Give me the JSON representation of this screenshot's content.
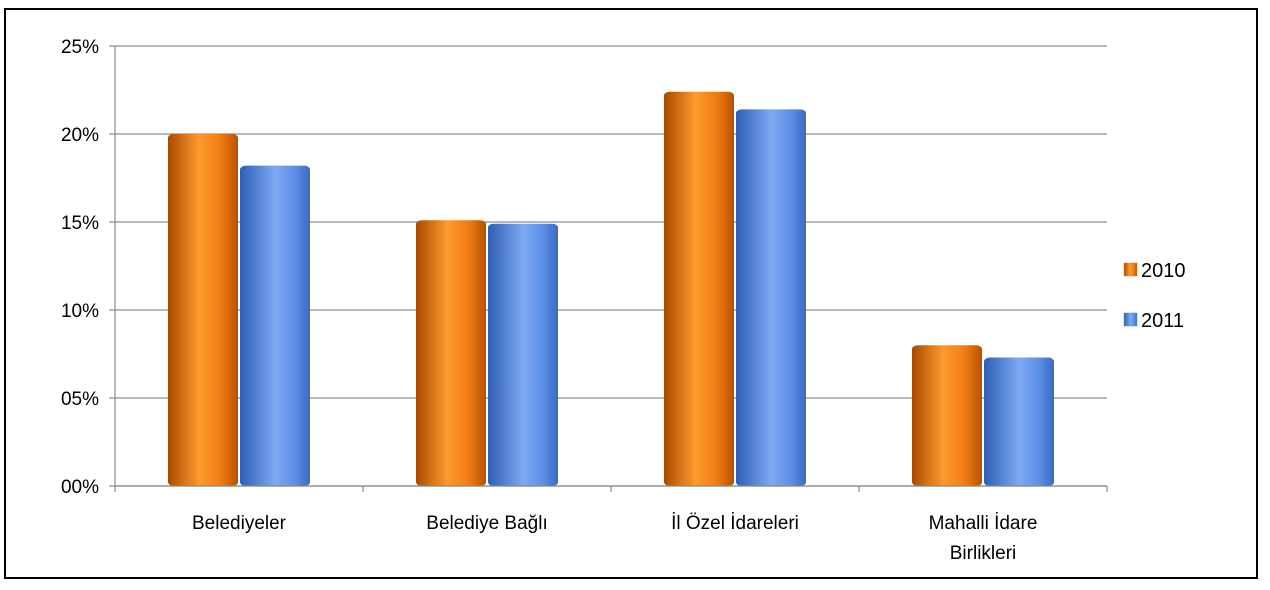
{
  "chart_data": {
    "type": "bar",
    "title": "",
    "xlabel": "",
    "ylabel": "",
    "categories": [
      [
        "Belediyeler"
      ],
      [
        "Belediye Bağlı"
      ],
      [
        "İl Özel İdareleri"
      ],
      [
        "Mahalli İdare",
        "Birlikleri"
      ]
    ],
    "series": [
      {
        "name": "2010",
        "values": [
          20.0,
          15.1,
          22.4,
          8.0
        ],
        "color": "#f07d12"
      },
      {
        "name": "2011",
        "values": [
          18.2,
          14.9,
          21.4,
          7.3
        ],
        "color": "#5b8ee6"
      }
    ],
    "ylim": [
      0,
      25
    ],
    "yticks": [
      "00%",
      "05%",
      "10%",
      "15%",
      "20%",
      "25%"
    ],
    "grid": true,
    "legend": "right"
  }
}
